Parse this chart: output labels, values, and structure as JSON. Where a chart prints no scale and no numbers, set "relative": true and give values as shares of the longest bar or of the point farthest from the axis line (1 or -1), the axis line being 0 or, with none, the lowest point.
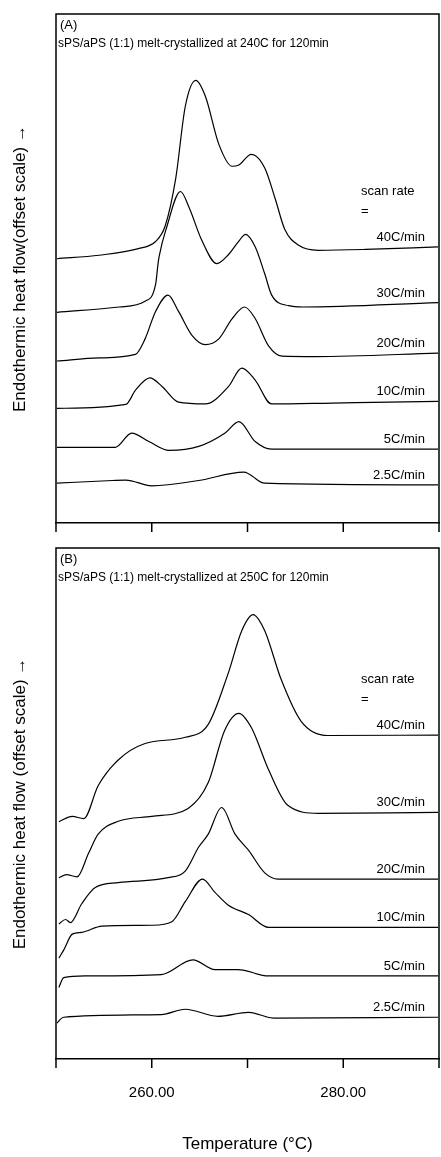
{
  "chart_data": [
    {
      "type": "line",
      "relative": true,
      "title": "(A)",
      "subtitle": "sPS/aPS (1:1) melt-crystallized at 240C for 120min",
      "ylabel": "Endothermic heat flow(offset scale) →",
      "annotations": [
        "scan rate",
        "="
      ],
      "xlim": [
        250,
        290
      ],
      "xticks": [
        {
          "value": 250,
          "label": null
        },
        {
          "value": 260,
          "label": null
        },
        {
          "value": 270,
          "label": null
        },
        {
          "value": 280,
          "label": null
        },
        {
          "value": 290,
          "label": null
        }
      ],
      "tick_labels": false,
      "legend": false,
      "grid": false,
      "marker": "none",
      "line_style": "solid",
      "series": [
        {
          "name": "40C/min",
          "color": "#000000",
          "x": [
            250.1,
            254.5,
            258.6,
            260.4,
            261.4,
            262.5,
            263.5,
            264.6,
            265.6,
            267.0,
            268.4,
            269.1,
            270.4,
            271.8,
            272.9,
            273.9,
            275.3,
            277.4,
            282.3,
            289.9
          ],
          "values": [
            0.597,
            0.605,
            0.62,
            0.636,
            0.671,
            0.778,
            0.941,
            1.0,
            0.964,
            0.856,
            0.806,
            0.809,
            0.833,
            0.802,
            0.732,
            0.663,
            0.628,
            0.616,
            0.618,
            0.624
          ]
        },
        {
          "name": "30C/min",
          "color": "#000000",
          "x": [
            250.1,
            256.6,
            259.3,
            260.4,
            260.7,
            261.6,
            263.0,
            263.9,
            265.2,
            266.8,
            268.0,
            269.1,
            269.8,
            270.8,
            271.8,
            272.5,
            274.3,
            275.8,
            289.9
          ],
          "values": [
            0.476,
            0.488,
            0.501,
            0.539,
            0.593,
            0.671,
            0.749,
            0.713,
            0.64,
            0.586,
            0.606,
            0.637,
            0.652,
            0.624,
            0.563,
            0.516,
            0.491,
            0.488,
            0.498
          ]
        },
        {
          "name": "20C/min",
          "color": "#000000",
          "x": [
            250.1,
            254.5,
            258.3,
            259.3,
            260.4,
            261.7,
            262.8,
            264.2,
            265.6,
            267.0,
            268.4,
            269.7,
            270.8,
            272.2,
            273.6,
            277.1,
            289.9
          ],
          "values": [
            0.366,
            0.373,
            0.381,
            0.416,
            0.478,
            0.515,
            0.478,
            0.424,
            0.403,
            0.416,
            0.462,
            0.488,
            0.462,
            0.4,
            0.377,
            0.376,
            0.384
          ]
        },
        {
          "name": "10C/min",
          "color": "#000000",
          "x": [
            250.1,
            257.3,
            258.3,
            259.8,
            261.1,
            262.8,
            265.6,
            268.0,
            269.4,
            270.8,
            272.5,
            278.8,
            289.9
          ],
          "values": [
            0.259,
            0.268,
            0.3,
            0.328,
            0.308,
            0.273,
            0.269,
            0.308,
            0.35,
            0.323,
            0.269,
            0.271,
            0.275
          ]
        },
        {
          "name": "5C/min",
          "color": "#000000",
          "x": [
            250.1,
            256.2,
            257.9,
            259.7,
            261.8,
            264.9,
            267.7,
            269.1,
            270.8,
            272.5,
            289.9
          ],
          "values": [
            0.171,
            0.171,
            0.203,
            0.184,
            0.164,
            0.173,
            0.204,
            0.229,
            0.184,
            0.167,
            0.167
          ]
        },
        {
          "name": "2.5C/min",
          "color": "#000000",
          "x": [
            250.1,
            255.9,
            257.3,
            260.0,
            264.9,
            269.6,
            271.8,
            289.9
          ],
          "values": [
            0.09,
            0.096,
            0.097,
            0.084,
            0.096,
            0.115,
            0.09,
            0.086
          ]
        }
      ]
    },
    {
      "type": "line",
      "relative": true,
      "title": "(B)",
      "subtitle": "sPS/aPS (1:1) melt-crystallized at 250C for 120min",
      "ylabel": "Endothermic heat flow (offset scale) →",
      "xlabel": "Temperature (°C)",
      "annotations": [
        "scan rate",
        "="
      ],
      "xlim": [
        250,
        290
      ],
      "xticks": [
        {
          "value": 250,
          "label": null
        },
        {
          "value": 260,
          "label": "260.00"
        },
        {
          "value": 270,
          "label": null
        },
        {
          "value": 280,
          "label": "280.00"
        },
        {
          "value": 290,
          "label": null
        }
      ],
      "tick_labels": "x",
      "legend": false,
      "grid": false,
      "marker": "none",
      "line_style": "solid",
      "series": [
        {
          "name": "40C/min",
          "color": "#000000",
          "x": [
            250.3,
            251.7,
            252.9,
            254.4,
            256.5,
            259.3,
            263.5,
            265.9,
            268.0,
            269.4,
            270.6,
            271.8,
            273.5,
            275.6,
            278.4,
            289.9
          ],
          "values": [
            0.534,
            0.546,
            0.541,
            0.615,
            0.673,
            0.71,
            0.724,
            0.753,
            0.869,
            0.964,
            1.0,
            0.964,
            0.855,
            0.76,
            0.728,
            0.729
          ]
        },
        {
          "name": "30C/min",
          "color": "#000000",
          "x": [
            250.3,
            251.1,
            252.2,
            253.4,
            254.4,
            256.5,
            260.0,
            263.8,
            265.9,
            267.6,
            269.1,
            270.4,
            272.2,
            274.2,
            277.4,
            289.9
          ],
          "values": [
            0.408,
            0.415,
            0.41,
            0.463,
            0.506,
            0.535,
            0.546,
            0.564,
            0.622,
            0.739,
            0.778,
            0.746,
            0.651,
            0.571,
            0.553,
            0.555
          ]
        },
        {
          "name": "20C/min",
          "color": "#000000",
          "x": [
            250.3,
            251.0,
            251.5,
            252.7,
            254.1,
            256.5,
            261.7,
            263.5,
            264.9,
            265.9,
            267.3,
            268.7,
            270.1,
            271.8,
            273.2,
            289.9
          ],
          "values": [
            0.304,
            0.314,
            0.307,
            0.35,
            0.386,
            0.397,
            0.408,
            0.423,
            0.477,
            0.506,
            0.566,
            0.506,
            0.47,
            0.419,
            0.405,
            0.405
          ]
        },
        {
          "name": "10C/min",
          "color": "#000000",
          "x": [
            250.3,
            250.8,
            251.7,
            252.7,
            254.8,
            260.0,
            262.1,
            263.5,
            265.3,
            266.6,
            268.0,
            270.1,
            272.2,
            289.9
          ],
          "values": [
            0.227,
            0.245,
            0.281,
            0.285,
            0.299,
            0.301,
            0.309,
            0.354,
            0.405,
            0.375,
            0.346,
            0.325,
            0.296,
            0.296
          ]
        },
        {
          "name": "5C/min",
          "color": "#000000",
          "x": [
            250.3,
            250.8,
            253.1,
            261.0,
            264.3,
            266.6,
            269.0,
            272.2,
            289.9
          ],
          "values": [
            0.161,
            0.183,
            0.187,
            0.19,
            0.223,
            0.201,
            0.201,
            0.187,
            0.187
          ]
        },
        {
          "name": "2.5C/min",
          "color": "#000000",
          "x": [
            250.1,
            250.8,
            261.0,
            263.5,
            266.9,
            270.1,
            272.8,
            289.9
          ],
          "values": [
            0.081,
            0.094,
            0.1,
            0.112,
            0.096,
            0.105,
            0.092,
            0.094
          ]
        }
      ]
    }
  ]
}
